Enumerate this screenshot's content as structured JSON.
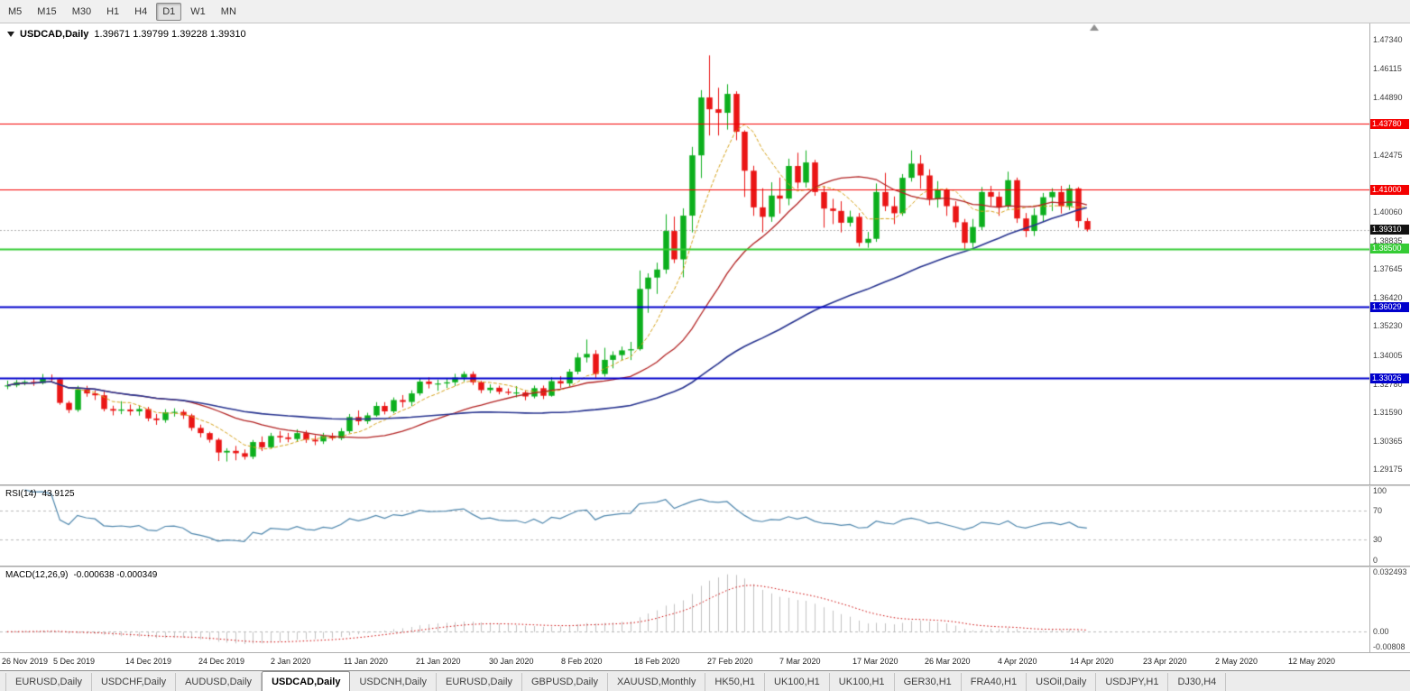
{
  "toolbar": {
    "timeframes": [
      {
        "label": "M5"
      },
      {
        "label": "M15"
      },
      {
        "label": "M30"
      },
      {
        "label": "H1"
      },
      {
        "label": "H4"
      },
      {
        "label": "D1"
      },
      {
        "label": "W1"
      },
      {
        "label": "MN"
      }
    ],
    "active_timeframe": "D1"
  },
  "chart": {
    "title_symbol": "USDCAD,Daily",
    "title_ohlc": "1.39671 1.39799 1.39228 1.39310"
  },
  "tabs": {
    "items": [
      {
        "label": "EURUSD,Daily"
      },
      {
        "label": "USDCHF,Daily"
      },
      {
        "label": "AUDUSD,Daily"
      },
      {
        "label": "USDCAD,Daily"
      },
      {
        "label": "USDCNH,Daily"
      },
      {
        "label": "EURUSD,Daily"
      },
      {
        "label": "GBPUSD,Daily"
      },
      {
        "label": "XAUUSD,Monthly"
      },
      {
        "label": "HK50,H1"
      },
      {
        "label": "UK100,H1"
      },
      {
        "label": "UK100,H1"
      },
      {
        "label": "GER30,H1"
      },
      {
        "label": "FRA40,H1"
      },
      {
        "label": "USOil,Daily"
      },
      {
        "label": "USDJPY,H1"
      },
      {
        "label": "DJ30,H4"
      }
    ],
    "active_index": 3
  },
  "colors": {
    "candle_up": "#0caf1d",
    "candle_down": "#ea1515",
    "ma_fast": "#d4a017",
    "ma_mid": "#b22222",
    "ma_slow": "#27338f",
    "hline_red": "#f40000",
    "hline_green": "#35cc35",
    "hline_blue": "#0000cc",
    "rsi_line": "#4f87ad",
    "macd_signal": "#cc0000",
    "macd_hist": "#c0c0c0",
    "current_price_badge": "#111111"
  },
  "chart_data": {
    "type": "candlestick",
    "symbol": "USDCAD",
    "timeframe": "Daily",
    "last_ohlc": {
      "open": 1.39671,
      "high": 1.39799,
      "low": 1.39228,
      "close": 1.3931
    },
    "current_price": {
      "value": 1.3931,
      "label": "1.39310"
    },
    "price_axis": {
      "min": 1.2853,
      "max": 1.4803,
      "tick_labels": [
        "1.47340",
        "1.46115",
        "1.44890",
        "1.42475",
        "1.40060",
        "1.38835",
        "1.37645",
        "1.36420",
        "1.35230",
        "1.34005",
        "1.32780",
        "1.31590",
        "1.30365",
        "1.29175"
      ]
    },
    "horizontal_lines": [
      {
        "price": 1.4378,
        "label": "1.43780",
        "color": "red"
      },
      {
        "price": 1.41,
        "label": "1.41000",
        "color": "red"
      },
      {
        "price": 1.385,
        "label": "1.38500",
        "color": "green"
      },
      {
        "price": 1.36029,
        "label": "1.36029",
        "color": "blue"
      },
      {
        "price": 1.33026,
        "label": "1.33026",
        "color": "blue"
      }
    ],
    "moving_averages": [
      {
        "period": 7,
        "color_role": "ma_fast"
      },
      {
        "period": 21,
        "color_role": "ma_mid"
      },
      {
        "period": 55,
        "color_role": "ma_slow"
      }
    ],
    "time_axis_labels": [
      "26 Nov 2019",
      "5 Dec 2019",
      "14 Dec 2019",
      "24 Dec 2019",
      "2 Jan 2020",
      "11 Jan 2020",
      "21 Jan 2020",
      "30 Jan 2020",
      "8 Feb 2020",
      "18 Feb 2020",
      "27 Feb 2020",
      "7 Mar 2020",
      "17 Mar 2020",
      "26 Mar 2020",
      "4 Apr 2020",
      "14 Apr 2020",
      "23 Apr 2020",
      "2 May 2020",
      "12 May 2020"
    ],
    "rsi": {
      "label": "RSI(14)",
      "period": 14,
      "value_display": "43.9125",
      "levels": [
        70,
        30
      ],
      "scale_labels": [
        "100",
        "70",
        "30",
        "0"
      ]
    },
    "macd": {
      "label": "MACD(12,26,9)",
      "fast": 12,
      "slow": 26,
      "signal": 9,
      "value_display": "-0.000638 -0.000349",
      "scale_max": 0.032493,
      "scale_min": -0.00808,
      "scale_labels": [
        "0.032493",
        "0.00",
        "-0.00808"
      ]
    },
    "candles": {
      "dates": [
        "2019-11-26",
        "2019-11-27",
        "2019-11-28",
        "2019-11-29",
        "2019-12-02",
        "2019-12-03",
        "2019-12-04",
        "2019-12-05",
        "2019-12-06",
        "2019-12-09",
        "2019-12-10",
        "2019-12-11",
        "2019-12-12",
        "2019-12-13",
        "2019-12-16",
        "2019-12-17",
        "2019-12-18",
        "2019-12-19",
        "2019-12-20",
        "2019-12-23",
        "2019-12-24",
        "2019-12-26",
        "2019-12-27",
        "2019-12-30",
        "2019-12-31",
        "2020-01-02",
        "2020-01-03",
        "2020-01-06",
        "2020-01-07",
        "2020-01-08",
        "2020-01-09",
        "2020-01-10",
        "2020-01-13",
        "2020-01-14",
        "2020-01-15",
        "2020-01-16",
        "2020-01-17",
        "2020-01-20",
        "2020-01-21",
        "2020-01-22",
        "2020-01-23",
        "2020-01-24",
        "2020-01-27",
        "2020-01-28",
        "2020-01-29",
        "2020-01-30",
        "2020-01-31",
        "2020-02-03",
        "2020-02-04",
        "2020-02-05",
        "2020-02-06",
        "2020-02-07",
        "2020-02-10",
        "2020-02-11",
        "2020-02-12",
        "2020-02-13",
        "2020-02-14",
        "2020-02-17",
        "2020-02-18",
        "2020-02-19",
        "2020-02-20",
        "2020-02-21",
        "2020-02-24",
        "2020-02-25",
        "2020-02-26",
        "2020-02-27",
        "2020-02-28",
        "2020-03-02",
        "2020-03-03",
        "2020-03-04",
        "2020-03-05",
        "2020-03-06",
        "2020-03-09",
        "2020-03-10",
        "2020-03-11",
        "2020-03-12",
        "2020-03-13",
        "2020-03-16",
        "2020-03-17",
        "2020-03-18",
        "2020-03-19",
        "2020-03-20",
        "2020-03-23",
        "2020-03-24",
        "2020-03-25",
        "2020-03-26",
        "2020-03-27",
        "2020-03-30",
        "2020-03-31",
        "2020-04-01",
        "2020-04-02",
        "2020-04-03",
        "2020-04-06",
        "2020-04-07",
        "2020-04-08",
        "2020-04-09",
        "2020-04-10",
        "2020-04-13",
        "2020-04-14",
        "2020-04-15",
        "2020-04-16",
        "2020-04-17",
        "2020-04-20",
        "2020-04-21",
        "2020-04-22",
        "2020-04-23",
        "2020-04-24",
        "2020-04-27",
        "2020-04-28",
        "2020-04-29",
        "2020-04-30",
        "2020-05-01",
        "2020-05-04",
        "2020-05-05",
        "2020-05-06",
        "2020-05-07",
        "2020-05-08",
        "2020-05-11",
        "2020-05-12",
        "2020-05-13",
        "2020-05-14",
        "2020-05-15",
        "2020-05-18",
        "2020-05-19"
      ],
      "ohlc": [
        [
          1.327,
          1.3292,
          1.3256,
          1.3272
        ],
        [
          1.3272,
          1.3295,
          1.3264,
          1.3285
        ],
        [
          1.3285,
          1.3294,
          1.3272,
          1.3287
        ],
        [
          1.3287,
          1.3301,
          1.327,
          1.3282
        ],
        [
          1.3282,
          1.332,
          1.3276,
          1.3303
        ],
        [
          1.3303,
          1.3318,
          1.3287,
          1.3298
        ],
        [
          1.3298,
          1.3304,
          1.319,
          1.3198
        ],
        [
          1.3198,
          1.3206,
          1.3155,
          1.3168
        ],
        [
          1.3168,
          1.327,
          1.316,
          1.3255
        ],
        [
          1.3255,
          1.327,
          1.3224,
          1.3238
        ],
        [
          1.3238,
          1.3251,
          1.321,
          1.323
        ],
        [
          1.323,
          1.3246,
          1.3162,
          1.3172
        ],
        [
          1.3172,
          1.3186,
          1.3145,
          1.3165
        ],
        [
          1.3165,
          1.3205,
          1.315,
          1.317
        ],
        [
          1.317,
          1.3191,
          1.3145,
          1.3162
        ],
        [
          1.3162,
          1.3186,
          1.3144,
          1.3172
        ],
        [
          1.3172,
          1.3181,
          1.312,
          1.3132
        ],
        [
          1.3132,
          1.3151,
          1.3105,
          1.3125
        ],
        [
          1.3125,
          1.3171,
          1.3114,
          1.3158
        ],
        [
          1.3158,
          1.3175,
          1.314,
          1.316
        ],
        [
          1.316,
          1.3169,
          1.313,
          1.3145
        ],
        [
          1.3145,
          1.3152,
          1.308,
          1.3092
        ],
        [
          1.3092,
          1.3106,
          1.3052,
          1.307
        ],
        [
          1.307,
          1.3076,
          1.303,
          1.3042
        ],
        [
          1.3042,
          1.3049,
          1.2952,
          1.2988
        ],
        [
          1.2988,
          1.3006,
          1.295,
          1.2995
        ],
        [
          1.2995,
          1.3016,
          1.2955,
          1.2985
        ],
        [
          1.2985,
          1.3001,
          1.2958,
          1.297
        ],
        [
          1.297,
          1.3041,
          1.296,
          1.3032
        ],
        [
          1.3032,
          1.3056,
          1.2994,
          1.301
        ],
        [
          1.301,
          1.3071,
          1.3004,
          1.3058
        ],
        [
          1.3058,
          1.3079,
          1.303,
          1.3052
        ],
        [
          1.3052,
          1.3071,
          1.3031,
          1.3045
        ],
        [
          1.3045,
          1.3086,
          1.3034,
          1.307
        ],
        [
          1.307,
          1.3081,
          1.3029,
          1.3042
        ],
        [
          1.3042,
          1.3061,
          1.3019,
          1.3035
        ],
        [
          1.3035,
          1.3071,
          1.3024,
          1.3058
        ],
        [
          1.3058,
          1.3071,
          1.3039,
          1.3048
        ],
        [
          1.3048,
          1.3091,
          1.304,
          1.3078
        ],
        [
          1.3078,
          1.3151,
          1.3069,
          1.3138
        ],
        [
          1.3138,
          1.3166,
          1.3104,
          1.312
        ],
        [
          1.312,
          1.3156,
          1.3109,
          1.3145
        ],
        [
          1.3145,
          1.3201,
          1.3139,
          1.3185
        ],
        [
          1.3185,
          1.3201,
          1.3149,
          1.3162
        ],
        [
          1.3162,
          1.3221,
          1.3154,
          1.321
        ],
        [
          1.321,
          1.3231,
          1.3179,
          1.3202
        ],
        [
          1.3202,
          1.3251,
          1.3184,
          1.3238
        ],
        [
          1.3238,
          1.3301,
          1.3229,
          1.3288
        ],
        [
          1.3288,
          1.3306,
          1.3259,
          1.3278
        ],
        [
          1.3278,
          1.3296,
          1.3249,
          1.328
        ],
        [
          1.328,
          1.3301,
          1.3261,
          1.3285
        ],
        [
          1.3285,
          1.3321,
          1.3269,
          1.3305
        ],
        [
          1.3305,
          1.3331,
          1.3289,
          1.332
        ],
        [
          1.332,
          1.3331,
          1.3274,
          1.3285
        ],
        [
          1.3285,
          1.3291,
          1.3239,
          1.3252
        ],
        [
          1.3252,
          1.3276,
          1.3239,
          1.3262
        ],
        [
          1.3262,
          1.3271,
          1.3234,
          1.3245
        ],
        [
          1.3245,
          1.3259,
          1.3231,
          1.324
        ],
        [
          1.324,
          1.3269,
          1.3221,
          1.3242
        ],
        [
          1.3242,
          1.3251,
          1.3209,
          1.3225
        ],
        [
          1.3225,
          1.3271,
          1.3217,
          1.326
        ],
        [
          1.326,
          1.3271,
          1.3214,
          1.3228
        ],
        [
          1.3228,
          1.3306,
          1.3224,
          1.329
        ],
        [
          1.329,
          1.3311,
          1.3261,
          1.328
        ],
        [
          1.328,
          1.3341,
          1.3269,
          1.333
        ],
        [
          1.333,
          1.3409,
          1.3319,
          1.339
        ],
        [
          1.339,
          1.3466,
          1.3369,
          1.3405
        ],
        [
          1.3405,
          1.3421,
          1.3304,
          1.332
        ],
        [
          1.332,
          1.3431,
          1.3309,
          1.338
        ],
        [
          1.338,
          1.3416,
          1.3344,
          1.34
        ],
        [
          1.34,
          1.3436,
          1.3379,
          1.342
        ],
        [
          1.342,
          1.3456,
          1.3379,
          1.3425
        ],
        [
          1.3425,
          1.3758,
          1.3419,
          1.368
        ],
        [
          1.368,
          1.3746,
          1.3579,
          1.3728
        ],
        [
          1.3728,
          1.3791,
          1.3659,
          1.3762
        ],
        [
          1.3762,
          1.3996,
          1.3744,
          1.3925
        ],
        [
          1.3925,
          1.3986,
          1.3789,
          1.3805
        ],
        [
          1.3805,
          1.4021,
          1.3729,
          1.399
        ],
        [
          1.399,
          1.4281,
          1.3919,
          1.4245
        ],
        [
          1.4245,
          1.4521,
          1.4149,
          1.449
        ],
        [
          1.449,
          1.4668,
          1.4329,
          1.444
        ],
        [
          1.444,
          1.4531,
          1.4329,
          1.4425
        ],
        [
          1.4425,
          1.4546,
          1.4354,
          1.4505
        ],
        [
          1.4505,
          1.4516,
          1.4309,
          1.4345
        ],
        [
          1.4345,
          1.4351,
          1.4069,
          1.418
        ],
        [
          1.418,
          1.4201,
          1.3989,
          1.4025
        ],
        [
          1.4025,
          1.4106,
          1.3919,
          1.3985
        ],
        [
          1.3985,
          1.4131,
          1.3964,
          1.4075
        ],
        [
          1.4075,
          1.4151,
          1.3999,
          1.4062
        ],
        [
          1.4062,
          1.4231,
          1.4034,
          1.42
        ],
        [
          1.42,
          1.4256,
          1.4104,
          1.413
        ],
        [
          1.413,
          1.4266,
          1.4109,
          1.4215
        ],
        [
          1.4215,
          1.4226,
          1.4074,
          1.409
        ],
        [
          1.409,
          1.4116,
          1.3939,
          1.402
        ],
        [
          1.402,
          1.4061,
          1.3954,
          1.401
        ],
        [
          1.401,
          1.4051,
          1.3919,
          1.396
        ],
        [
          1.396,
          1.4011,
          1.3944,
          1.3985
        ],
        [
          1.3985,
          1.4001,
          1.3859,
          1.3875
        ],
        [
          1.3875,
          1.3921,
          1.3854,
          1.3892
        ],
        [
          1.3892,
          1.4126,
          1.3879,
          1.409
        ],
        [
          1.409,
          1.4171,
          1.4009,
          1.403
        ],
        [
          1.403,
          1.4071,
          1.3954,
          1.4
        ],
        [
          1.4,
          1.4166,
          1.3989,
          1.415
        ],
        [
          1.415,
          1.4266,
          1.4134,
          1.421
        ],
        [
          1.421,
          1.4246,
          1.4104,
          1.416
        ],
        [
          1.416,
          1.4186,
          1.4034,
          1.406
        ],
        [
          1.406,
          1.4136,
          1.4024,
          1.4098
        ],
        [
          1.4098,
          1.4106,
          1.3989,
          1.403
        ],
        [
          1.403,
          1.4051,
          1.3939,
          1.3962
        ],
        [
          1.3962,
          1.3976,
          1.3849,
          1.3875
        ],
        [
          1.3875,
          1.3976,
          1.3854,
          1.3942
        ],
        [
          1.3942,
          1.4111,
          1.3929,
          1.409
        ],
        [
          1.409,
          1.4116,
          1.4029,
          1.407
        ],
        [
          1.407,
          1.4091,
          1.3989,
          1.4028
        ],
        [
          1.4028,
          1.4176,
          1.4019,
          1.414
        ],
        [
          1.414,
          1.4151,
          1.3959,
          1.3978
        ],
        [
          1.3978,
          1.4001,
          1.3899,
          1.3925
        ],
        [
          1.3925,
          1.4021,
          1.3904,
          1.3992
        ],
        [
          1.3992,
          1.4086,
          1.3964,
          1.4068
        ],
        [
          1.4068,
          1.4106,
          1.4009,
          1.409
        ],
        [
          1.409,
          1.4116,
          1.3999,
          1.403
        ],
        [
          1.403,
          1.4121,
          1.4014,
          1.4105
        ],
        [
          1.4105,
          1.4111,
          1.3939,
          1.3967
        ],
        [
          1.39671,
          1.39799,
          1.39228,
          1.3931
        ]
      ]
    }
  }
}
